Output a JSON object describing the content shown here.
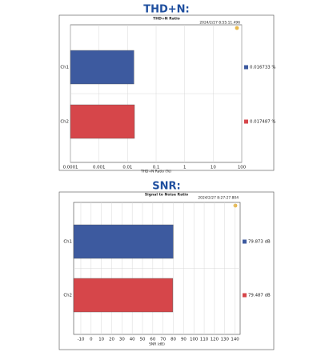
{
  "chart_data": [
    {
      "type": "bar",
      "orientation": "horizontal",
      "heading": "THD+N:",
      "title": "THD+N Ratio",
      "annotation": "2024/2/27 8:55:11.496",
      "categories": [
        "Ch1",
        "Ch2"
      ],
      "values": [
        0.016733,
        0.017487
      ],
      "value_labels": [
        "0.016733 %",
        "0.017487 %"
      ],
      "colors": [
        "#3d5a9f",
        "#d6464a"
      ],
      "xlabel": "THD+N Ratio (%)",
      "xscale": "log",
      "xlim": [
        0.0001,
        100
      ],
      "xticks": [
        0.0001,
        0.001,
        0.01,
        0.1,
        1,
        10,
        100
      ],
      "grid": true
    },
    {
      "type": "bar",
      "orientation": "horizontal",
      "heading": "SNR:",
      "title": "Signal to Noise Ratio",
      "annotation": "2024/2/27 8:27:27.804",
      "categories": [
        "Ch1",
        "Ch2"
      ],
      "values": [
        79.873,
        79.487
      ],
      "value_labels": [
        "79.873 dB",
        "79.487 dB"
      ],
      "colors": [
        "#3d5a9f",
        "#d6464a"
      ],
      "xlabel": "SNR (dB)",
      "xscale": "linear",
      "xlim": [
        -17,
        145
      ],
      "xticks": [
        -10,
        0,
        10,
        20,
        30,
        40,
        50,
        60,
        70,
        80,
        90,
        100,
        110,
        120,
        130,
        140
      ],
      "grid": true
    }
  ]
}
